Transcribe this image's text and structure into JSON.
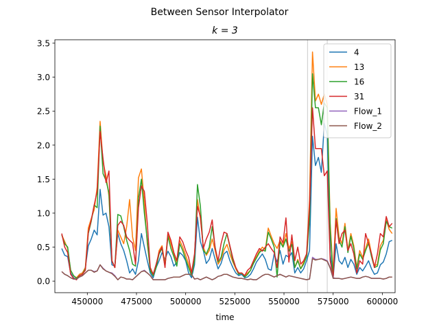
{
  "chart_data": {
    "type": "line",
    "suptitle": "Between Sensor Interpolator",
    "title": "k = 3",
    "xlabel": "time",
    "ylabel": "",
    "xlim": [
      433500,
      606500
    ],
    "ylim": [
      -0.17,
      3.55
    ],
    "xticks": [
      450000,
      475000,
      500000,
      525000,
      550000,
      575000,
      600000
    ],
    "yticks": [
      0.0,
      0.5,
      1.0,
      1.5,
      2.0,
      2.5,
      3.0,
      3.5
    ],
    "xtick_labels": [
      "450000",
      "475000",
      "500000",
      "525000",
      "550000",
      "575000",
      "600000"
    ],
    "ytick_labels": [
      "0.0",
      "0.5",
      "1.0",
      "1.5",
      "2.0",
      "2.5",
      "3.0",
      "3.5"
    ],
    "vlines": [
      562000,
      572000
    ],
    "vline_color": "#d3d3d3",
    "legend_position": "upper right",
    "x": [
      437000,
      438500,
      440000,
      441500,
      443000,
      444500,
      446000,
      447500,
      449000,
      450500,
      452000,
      453500,
      455000,
      456500,
      458000,
      459500,
      461000,
      462500,
      464000,
      465500,
      467000,
      468500,
      470000,
      471500,
      473000,
      474500,
      476000,
      477500,
      479000,
      480500,
      482000,
      483500,
      485000,
      486500,
      488000,
      489500,
      491000,
      492500,
      494000,
      495500,
      497000,
      498500,
      500000,
      501500,
      503000,
      504500,
      506000,
      507500,
      509000,
      510500,
      512000,
      513500,
      515000,
      516500,
      518000,
      519500,
      521000,
      522500,
      524000,
      525500,
      527000,
      528500,
      530000,
      531500,
      533000,
      534500,
      536000,
      537500,
      539000,
      540500,
      542000,
      543500,
      545000,
      546500,
      548000,
      549500,
      551000,
      552500,
      554000,
      555500,
      557000,
      558500,
      560000,
      561500,
      563000,
      564500,
      566000,
      567500,
      569000,
      570500,
      572000,
      573500,
      575000,
      576500,
      578000,
      579500,
      581000,
      582500,
      584000,
      585500,
      587000,
      588500,
      590000,
      591500,
      593000,
      594500,
      596000,
      597500,
      599000,
      600500,
      602000,
      603500,
      605000
    ],
    "series": [
      {
        "name": "4",
        "color": "#1f77b4",
        "values": [
          0.48,
          0.38,
          0.36,
          0.12,
          0.05,
          0.02,
          0.1,
          0.12,
          0.2,
          0.52,
          0.62,
          0.75,
          0.68,
          1.35,
          0.97,
          1.0,
          0.8,
          0.24,
          0.22,
          0.7,
          0.55,
          0.45,
          0.3,
          0.12,
          0.18,
          0.1,
          0.3,
          0.7,
          0.5,
          0.3,
          0.12,
          0.05,
          0.2,
          0.3,
          0.42,
          0.32,
          0.44,
          0.36,
          0.22,
          0.28,
          0.42,
          0.38,
          0.3,
          0.12,
          0.05,
          0.24,
          0.94,
          0.58,
          0.45,
          0.26,
          0.32,
          0.48,
          0.32,
          0.18,
          0.26,
          0.4,
          0.44,
          0.3,
          0.2,
          0.12,
          0.08,
          0.1,
          0.05,
          0.06,
          0.1,
          0.18,
          0.28,
          0.34,
          0.4,
          0.32,
          0.18,
          0.16,
          0.4,
          0.28,
          0.45,
          0.25,
          0.38,
          0.35,
          0.42,
          0.12,
          0.2,
          0.12,
          0.18,
          0.3,
          0.45,
          2.13,
          1.7,
          1.82,
          1.6,
          2.32,
          2.15,
          0.4,
          0.05,
          0.55,
          0.3,
          0.25,
          0.35,
          0.2,
          0.32,
          0.25,
          0.1,
          0.2,
          0.15,
          0.22,
          0.3,
          0.18,
          0.1,
          0.12,
          0.24,
          0.28,
          0.4,
          0.58,
          0.6
        ]
      },
      {
        "name": "13",
        "color": "#ff7f0e",
        "values": [
          0.68,
          0.58,
          0.48,
          0.16,
          0.08,
          0.05,
          0.1,
          0.12,
          0.2,
          0.78,
          0.92,
          1.05,
          1.38,
          2.35,
          1.75,
          1.55,
          1.25,
          0.3,
          0.2,
          0.75,
          0.65,
          0.55,
          0.8,
          1.2,
          0.65,
          0.45,
          1.52,
          1.65,
          1.15,
          0.55,
          0.18,
          0.08,
          0.22,
          0.45,
          0.52,
          0.25,
          0.7,
          0.55,
          0.4,
          0.28,
          0.6,
          0.5,
          0.38,
          0.25,
          0.1,
          0.35,
          1.2,
          0.92,
          0.5,
          0.38,
          0.45,
          0.62,
          0.45,
          0.25,
          0.32,
          0.46,
          0.54,
          0.4,
          0.28,
          0.18,
          0.1,
          0.12,
          0.08,
          0.12,
          0.16,
          0.28,
          0.36,
          0.44,
          0.5,
          0.46,
          0.78,
          0.66,
          0.55,
          0.48,
          0.6,
          0.52,
          0.7,
          0.48,
          0.58,
          0.2,
          0.32,
          0.18,
          0.28,
          0.4,
          1.2,
          3.37,
          2.65,
          2.75,
          2.6,
          2.75,
          2.6,
          0.85,
          0.12,
          1.07,
          0.65,
          0.55,
          0.85,
          0.45,
          0.7,
          0.52,
          0.2,
          0.45,
          0.35,
          0.48,
          0.62,
          0.4,
          0.22,
          0.25,
          0.52,
          0.6,
          0.9,
          0.76,
          0.7
        ]
      },
      {
        "name": "16",
        "color": "#2ca02c",
        "values": [
          0.68,
          0.55,
          0.5,
          0.16,
          0.08,
          0.04,
          0.08,
          0.1,
          0.18,
          0.7,
          0.88,
          1.12,
          1.08,
          2.28,
          1.58,
          1.48,
          1.3,
          0.3,
          0.2,
          0.98,
          0.96,
          0.8,
          0.6,
          0.45,
          0.25,
          0.22,
          1.22,
          1.5,
          1.0,
          0.6,
          0.15,
          0.08,
          0.2,
          0.4,
          0.48,
          0.22,
          0.66,
          0.48,
          0.36,
          0.22,
          0.55,
          0.45,
          0.32,
          0.2,
          0.08,
          0.3,
          1.42,
          1.1,
          0.45,
          0.4,
          0.5,
          0.8,
          0.5,
          0.28,
          0.35,
          0.55,
          0.7,
          0.5,
          0.3,
          0.2,
          0.1,
          0.12,
          0.06,
          0.1,
          0.16,
          0.26,
          0.34,
          0.42,
          0.46,
          0.44,
          0.72,
          0.62,
          0.5,
          0.06,
          0.58,
          0.5,
          0.62,
          0.44,
          0.54,
          0.2,
          0.3,
          0.18,
          0.25,
          0.36,
          0.9,
          3.05,
          2.55,
          2.55,
          2.3,
          2.62,
          2.55,
          0.75,
          0.06,
          0.92,
          0.6,
          0.5,
          0.8,
          0.42,
          0.66,
          0.48,
          0.18,
          0.4,
          0.32,
          0.45,
          0.56,
          0.36,
          0.2,
          0.22,
          0.46,
          0.55,
          0.88,
          0.8,
          0.78
        ]
      },
      {
        "name": "31",
        "color": "#d62728",
        "values": [
          0.7,
          0.5,
          0.42,
          0.1,
          0.04,
          0.02,
          0.08,
          0.1,
          0.16,
          0.72,
          0.9,
          1.12,
          1.32,
          2.2,
          1.8,
          1.45,
          1.62,
          0.3,
          0.2,
          0.82,
          0.88,
          0.82,
          0.65,
          0.6,
          0.56,
          0.25,
          1.08,
          1.4,
          1.32,
          0.85,
          0.2,
          0.1,
          0.25,
          0.42,
          0.5,
          0.2,
          0.72,
          0.6,
          0.42,
          0.3,
          0.65,
          0.58,
          0.45,
          0.35,
          0.12,
          0.4,
          1.1,
          0.95,
          0.48,
          0.62,
          0.72,
          0.9,
          0.48,
          0.3,
          0.55,
          0.72,
          0.7,
          0.52,
          0.34,
          0.2,
          0.12,
          0.12,
          0.08,
          0.16,
          0.2,
          0.3,
          0.4,
          0.48,
          0.44,
          0.5,
          0.55,
          0.48,
          0.42,
          0.2,
          0.65,
          0.56,
          0.93,
          0.28,
          0.68,
          0.3,
          0.5,
          0.25,
          0.3,
          0.4,
          1.1,
          2.55,
          1.95,
          1.95,
          1.95,
          1.55,
          1.62,
          0.3,
          0.05,
          0.9,
          0.55,
          0.7,
          0.75,
          0.45,
          0.55,
          0.4,
          0.12,
          0.3,
          0.25,
          0.7,
          0.55,
          0.4,
          0.2,
          0.4,
          0.7,
          0.65,
          0.95,
          0.8,
          0.85
        ]
      },
      {
        "name": "Flow_1",
        "color": "#9467bd",
        "values": [
          0.14,
          0.1,
          0.08,
          0.05,
          0.03,
          0.03,
          0.06,
          0.08,
          0.12,
          0.16,
          0.16,
          0.14,
          0.15,
          0.24,
          0.19,
          0.15,
          0.13,
          0.12,
          0.08,
          0.02,
          0.06,
          0.05,
          0.03,
          0.03,
          0.02,
          0.06,
          0.1,
          0.14,
          0.16,
          0.12,
          0.08,
          0.02,
          0.02,
          0.02,
          0.02,
          0.02,
          0.04,
          0.05,
          0.06,
          0.06,
          0.06,
          0.08,
          0.1,
          0.1,
          0.1,
          0.03,
          0.04,
          0.02,
          0.04,
          0.06,
          0.04,
          0.02,
          0.04,
          0.07,
          0.08,
          0.1,
          0.1,
          0.08,
          0.06,
          0.05,
          0.04,
          0.04,
          0.03,
          0.02,
          0.03,
          0.02,
          0.02,
          0.05,
          0.08,
          0.1,
          0.1,
          0.08,
          0.06,
          0.08,
          0.1,
          0.08,
          0.06,
          0.08,
          0.07,
          0.06,
          0.05,
          0.04,
          0.03,
          0.02,
          0.03,
          0.35,
          0.32,
          0.32,
          0.33,
          0.32,
          0.3,
          0.2,
          0.05,
          0.04,
          0.04,
          0.03,
          0.04,
          0.05,
          0.06,
          0.05,
          0.04,
          0.04,
          0.06,
          0.07,
          0.06,
          0.04,
          0.04,
          0.04,
          0.04,
          0.03,
          0.04,
          0.06,
          0.06
        ]
      },
      {
        "name": "Flow_2",
        "color": "#8c564b",
        "values": [
          0.14,
          0.1,
          0.08,
          0.05,
          0.03,
          0.03,
          0.06,
          0.08,
          0.12,
          0.16,
          0.16,
          0.13,
          0.15,
          0.24,
          0.18,
          0.15,
          0.13,
          0.11,
          0.07,
          0.02,
          0.06,
          0.05,
          0.03,
          0.03,
          0.02,
          0.06,
          0.1,
          0.14,
          0.15,
          0.12,
          0.08,
          0.02,
          0.02,
          0.02,
          0.02,
          0.02,
          0.04,
          0.05,
          0.06,
          0.06,
          0.06,
          0.08,
          0.1,
          0.1,
          0.1,
          0.03,
          0.04,
          0.02,
          0.04,
          0.06,
          0.04,
          0.02,
          0.04,
          0.07,
          0.08,
          0.1,
          0.1,
          0.08,
          0.06,
          0.05,
          0.04,
          0.04,
          0.03,
          0.02,
          0.03,
          0.02,
          0.02,
          0.05,
          0.08,
          0.1,
          0.1,
          0.08,
          0.06,
          0.08,
          0.1,
          0.08,
          0.06,
          0.08,
          0.07,
          0.06,
          0.05,
          0.04,
          0.03,
          0.02,
          0.03,
          0.33,
          0.31,
          0.32,
          0.33,
          0.31,
          0.29,
          0.19,
          0.04,
          0.04,
          0.04,
          0.03,
          0.04,
          0.05,
          0.06,
          0.05,
          0.04,
          0.04,
          0.06,
          0.07,
          0.06,
          0.04,
          0.04,
          0.04,
          0.04,
          0.03,
          0.04,
          0.06,
          0.06
        ]
      }
    ]
  }
}
